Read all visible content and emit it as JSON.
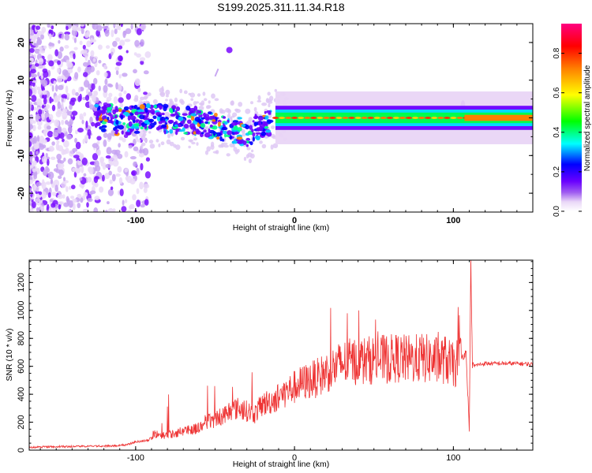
{
  "figure_title": "S199.2025.311.11.34.R18",
  "chart_data": [
    {
      "type": "heatmap",
      "xlabel": "Height of straight line (km)",
      "ylabel": "Frequency (Hz)",
      "xlim": [
        -167,
        150
      ],
      "ylim": [
        -25,
        25
      ],
      "xticks": [
        {
          "v": -100,
          "label": "-100"
        },
        {
          "v": 0,
          "label": "0"
        },
        {
          "v": 100,
          "label": "100"
        }
      ],
      "yticks": [
        {
          "v": 20,
          "label": "20"
        },
        {
          "v": 10,
          "label": "10"
        },
        {
          "v": 0,
          "label": "0"
        },
        {
          "v": -10,
          "label": "-10"
        },
        {
          "v": -20,
          "label": "-20"
        }
      ],
      "colorbar": {
        "label": "Normalized spectral amplitude",
        "range": [
          0,
          0.95
        ],
        "ticks": [
          {
            "v": 0.0,
            "label": "0.0"
          },
          {
            "v": 0.2,
            "label": "0.2"
          },
          {
            "v": 0.4,
            "label": "0.4"
          },
          {
            "v": 0.6,
            "label": "0.6"
          },
          {
            "v": 0.8,
            "label": "0.8"
          }
        ],
        "colormap": [
          "#ffffff",
          "#e9d5f6",
          "#a05ef0",
          "#6a00ff",
          "#0000ff",
          "#00ffff",
          "#00ff00",
          "#ffff00",
          "#ff7f00",
          "#ff0000",
          "#ff0080"
        ]
      },
      "ridge": {
        "description_points": [
          {
            "x": -115,
            "y": -1
          },
          {
            "x": -90,
            "y": 0
          },
          {
            "x": -60,
            "y": -1
          },
          {
            "x": -30,
            "y": -4
          },
          {
            "x": -20,
            "y": -1.5
          },
          {
            "x": -10,
            "y": 0
          },
          {
            "x": 0,
            "y": 0
          },
          {
            "x": 50,
            "y": 0
          },
          {
            "x": 100,
            "y": 0
          },
          {
            "x": 150,
            "y": 0
          }
        ]
      }
    },
    {
      "type": "line",
      "xlabel": "Height of straight line (km)",
      "ylabel": "SNR (10 * v/v)",
      "xlim": [
        -167,
        150
      ],
      "ylim": [
        0,
        1360
      ],
      "xticks": [
        {
          "v": -100,
          "label": "-100"
        },
        {
          "v": 0,
          "label": "0"
        },
        {
          "v": 100,
          "label": "100"
        }
      ],
      "yticks": [
        {
          "v": 0,
          "label": "0"
        },
        {
          "v": 200,
          "label": "200"
        },
        {
          "v": 400,
          "label": "400"
        },
        {
          "v": 600,
          "label": "600"
        },
        {
          "v": 800,
          "label": "800"
        },
        {
          "v": 1000,
          "label": "1000"
        },
        {
          "v": 1200,
          "label": "1200"
        }
      ],
      "color": "#ee3333",
      "series": [
        {
          "x": [
            -167,
            -150,
            -130,
            -115,
            -105,
            -100,
            -92,
            -88,
            -85,
            -80,
            -75,
            -70,
            -65,
            -60,
            -55,
            -50,
            -45,
            -40,
            -35,
            -30,
            -25,
            -20,
            -15,
            -10,
            -5,
            0,
            5,
            10,
            15,
            20,
            25,
            30,
            35,
            40,
            45,
            50,
            55,
            60,
            65,
            70,
            75,
            80,
            85,
            90,
            95,
            100,
            105,
            108,
            110,
            111,
            112,
            115,
            120,
            130,
            140,
            150
          ],
          "y": [
            20,
            25,
            28,
            30,
            40,
            60,
            70,
            120,
            100,
            110,
            120,
            140,
            150,
            160,
            200,
            220,
            250,
            290,
            300,
            280,
            260,
            330,
            350,
            380,
            420,
            450,
            480,
            500,
            520,
            560,
            590,
            620,
            630,
            640,
            640,
            650,
            650,
            650,
            660,
            650,
            650,
            660,
            650,
            640,
            650,
            600,
            660,
            700,
            150,
            1360,
            600,
            610,
            620,
            620,
            620,
            615
          ]
        }
      ]
    }
  ]
}
